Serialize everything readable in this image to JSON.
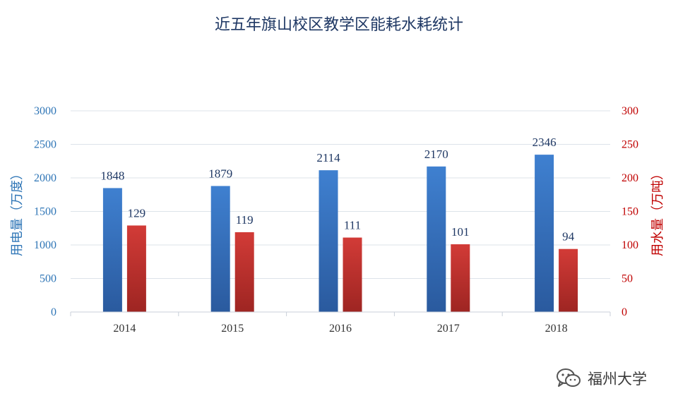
{
  "chart_data": {
    "type": "bar",
    "title": "近五年旗山校区教学区能耗水耗统计",
    "categories": [
      "2014",
      "2015",
      "2016",
      "2017",
      "2018"
    ],
    "series": [
      {
        "name": "用电量（万度）",
        "axis": "left",
        "color": "#3b78c6",
        "values": [
          1848,
          1879,
          2114,
          2170,
          2346
        ]
      },
      {
        "name": "用水量（万吨）",
        "axis": "right",
        "color": "#c9302c",
        "values": [
          129,
          119,
          111,
          101,
          94
        ]
      }
    ],
    "ylabel": "用电量（万度）",
    "y2label": "用水量（万吨）",
    "ylim": [
      0,
      3000
    ],
    "y2lim": [
      0,
      300
    ],
    "yticks": [
      "0",
      "500",
      "1000",
      "1500",
      "2000",
      "2500",
      "3000"
    ],
    "y2ticks": [
      "0",
      "50",
      "100",
      "150",
      "200",
      "250",
      "300"
    ],
    "ylabel_color": "#2e75b6",
    "y2label_color": "#c00000",
    "grid": true,
    "legend": "none"
  },
  "watermark": {
    "icon": "wechat-icon",
    "text": "福州大学"
  }
}
